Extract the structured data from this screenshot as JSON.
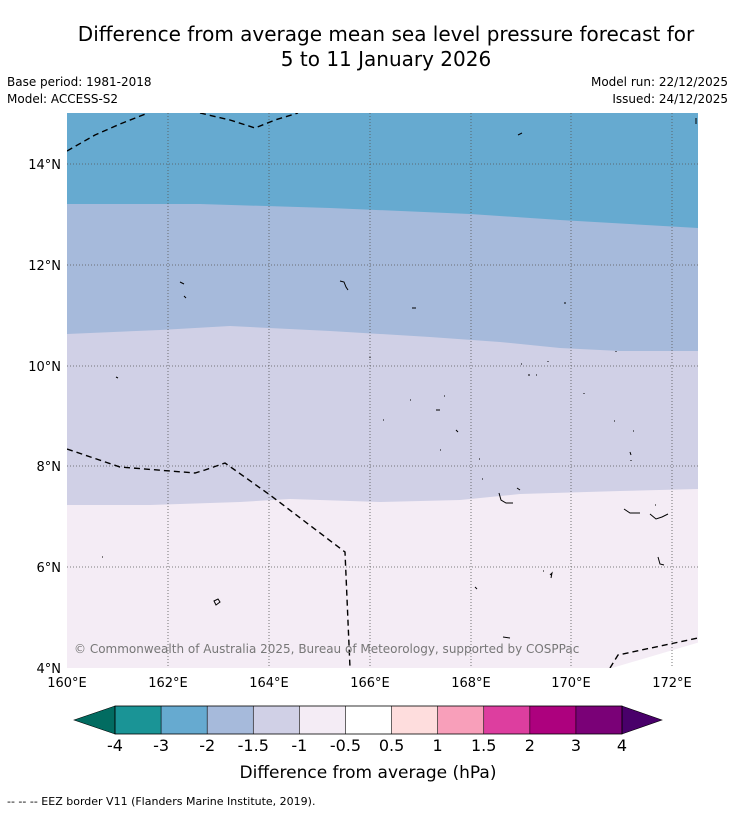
{
  "title_line1": "Difference from average mean sea level pressure forecast for",
  "title_line2": "5 to 11 January 2026",
  "base_period": "Base period: 1981-2018",
  "model": "Model: ACCESS-S2",
  "model_run": "Model run: 22/12/2025",
  "issued": "Issued: 24/12/2025",
  "copyright": "© Commonwealth of Australia 2025, Bureau of Meteorology, supported by COSPPac",
  "lat_labels": [
    "14°N",
    "12°N",
    "10°N",
    "8°N",
    "6°N",
    "4°N"
  ],
  "lon_labels": [
    "160°E",
    "162°E",
    "164°E",
    "166°E",
    "168°E",
    "170°E",
    "172°E"
  ],
  "colorbar": {
    "label": "Difference from average (hPa)",
    "tick_labels": [
      "-4",
      "-3",
      "-2",
      "-1.5",
      "-1",
      "-0.5",
      "0.5",
      "1",
      "1.5",
      "2",
      "3",
      "4"
    ],
    "colors": [
      "#1a9496",
      "#66aad0",
      "#a6badb",
      "#d0d0e6",
      "#f4ecf5",
      "#ffffff",
      "#fedddd",
      "#f89fba",
      "#dd3e9f",
      "#ad017e",
      "#7a0177"
    ],
    "under_color": "#026c61",
    "over_color": "#49006a"
  },
  "legend_note": "--  --  -- EEZ border V11 (Flanders Marine Institute, 2019).",
  "field_colors": {
    "band_minus2_to_minus3": "#66aad0",
    "band_minus1_5_to_minus2": "#a6badb",
    "band_minus1_to_minus1_5": "#d0d0e6",
    "band_minus0_5_to_minus1": "#f4ecf5",
    "band_neutral": "#ffffff"
  }
}
